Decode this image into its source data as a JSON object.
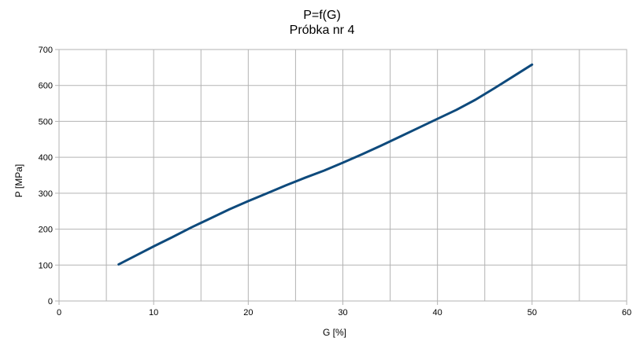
{
  "chart_data": {
    "type": "line",
    "title": "P=f(G)",
    "subtitle": "Próbka nr 4",
    "xlabel": "G [%]",
    "ylabel": "P [MPa]",
    "xlim": [
      0,
      60
    ],
    "ylim": [
      0,
      700
    ],
    "xticks": [
      0,
      10,
      20,
      30,
      40,
      50,
      60
    ],
    "yticks": [
      0,
      100,
      200,
      300,
      400,
      500,
      600,
      700
    ],
    "x_minor_grid": [
      5,
      15,
      25,
      35,
      45,
      55
    ],
    "grid": true,
    "legend": "none",
    "series": [
      {
        "color": "#0e4a7c",
        "x": [
          6.3,
          8,
          10,
          12,
          14,
          16,
          18,
          20,
          22,
          24,
          26,
          28,
          30,
          32,
          34,
          36,
          38,
          40,
          42,
          44,
          46,
          48,
          50
        ],
        "y": [
          102,
          125,
          152,
          178,
          205,
          230,
          255,
          278,
          300,
          322,
          343,
          363,
          385,
          408,
          432,
          457,
          482,
          507,
          532,
          560,
          592,
          625,
          658
        ]
      }
    ]
  }
}
